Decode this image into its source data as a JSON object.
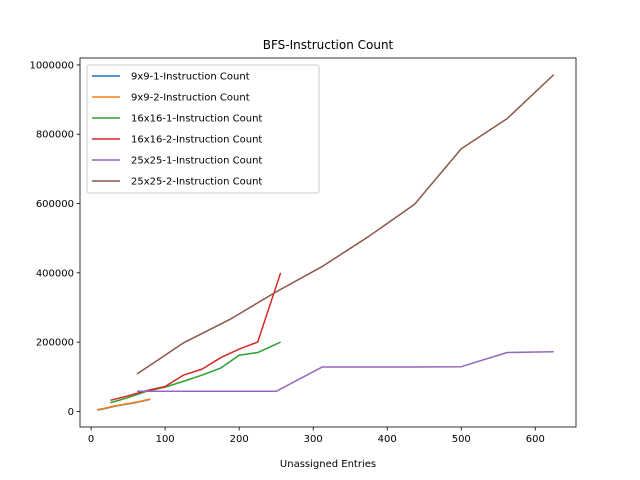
{
  "chart_data": {
    "type": "line",
    "title": "BFS-Instruction Count",
    "xlabel": "Unassigned Entries",
    "ylabel": "",
    "xlim": [
      -15,
      655
    ],
    "ylim": [
      -45000,
      1020000
    ],
    "xticks": [
      0,
      100,
      200,
      300,
      400,
      500,
      600
    ],
    "yticks": [
      0,
      200000,
      400000,
      600000,
      800000,
      1000000
    ],
    "grid": false,
    "legend_position": "top-left",
    "series": [
      {
        "name": "9x9-1-Instruction Count",
        "color": "#1f77b4",
        "x": [
          8,
          16,
          24,
          32,
          40,
          48,
          56,
          64,
          72,
          80
        ],
        "y": [
          4000,
          7000,
          11000,
          15000,
          18000,
          21000,
          24000,
          27000,
          31000,
          35000
        ]
      },
      {
        "name": "9x9-2-Instruction Count",
        "color": "#ff7f0e",
        "x": [
          8,
          16,
          24,
          32,
          40,
          48,
          56,
          64,
          72,
          80
        ],
        "y": [
          5000,
          8000,
          12000,
          16000,
          19000,
          22000,
          25000,
          28000,
          32000,
          36000
        ]
      },
      {
        "name": "16x16-1-Instruction Count",
        "color": "#2ca02c",
        "x": [
          26,
          50,
          75,
          100,
          125,
          150,
          175,
          200,
          225,
          256
        ],
        "y": [
          25000,
          40000,
          58000,
          70000,
          87000,
          105000,
          125000,
          162000,
          170000,
          200000
        ]
      },
      {
        "name": "16x16-2-Instruction Count",
        "color": "#d62728",
        "x": [
          26,
          50,
          75,
          100,
          125,
          150,
          175,
          200,
          225,
          256
        ],
        "y": [
          32000,
          45000,
          60000,
          72000,
          105000,
          122000,
          155000,
          180000,
          200000,
          400000
        ]
      },
      {
        "name": "25x25-1-Instruction Count",
        "color": "#9467bd",
        "x": [
          62,
          125,
          187,
          250,
          312,
          375,
          437,
          500,
          562,
          625
        ],
        "y": [
          58000,
          58000,
          58000,
          58000,
          128000,
          128000,
          128000,
          129000,
          170000,
          172000
        ]
      },
      {
        "name": "25x25-2-Instruction Count",
        "color": "#8c564b",
        "x": [
          62,
          125,
          187,
          250,
          312,
          375,
          437,
          500,
          562,
          625
        ],
        "y": [
          108000,
          198000,
          265000,
          345000,
          418000,
          505000,
          598000,
          758000,
          845000,
          972000
        ]
      }
    ]
  }
}
